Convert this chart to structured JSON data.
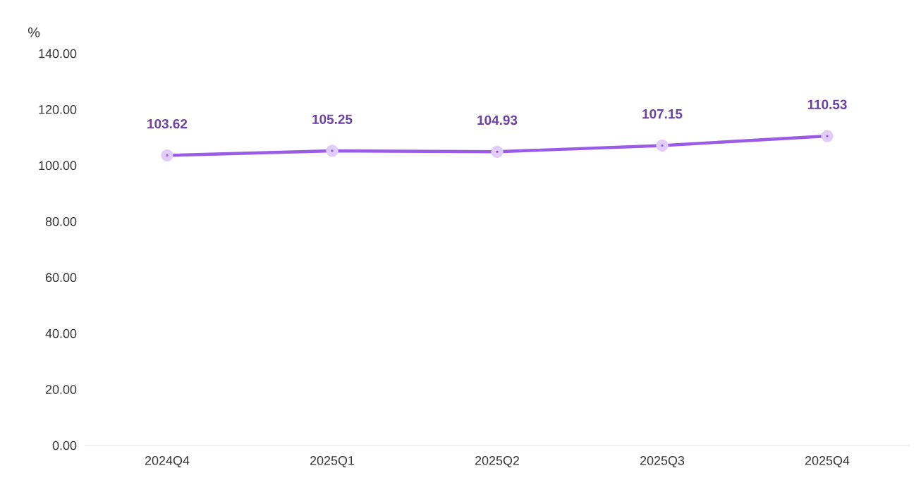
{
  "chart_data": {
    "type": "line",
    "ylabel": "%",
    "categories": [
      "2024Q4",
      "2025Q1",
      "2025Q2",
      "2025Q3",
      "2025Q4"
    ],
    "series": [
      {
        "color": "#9a5ce6",
        "values": [
          103.62,
          105.25,
          104.93,
          107.15,
          110.53
        ]
      }
    ],
    "ylim": [
      0,
      140
    ],
    "yticks": [
      {
        "value": 0,
        "label": "0.00"
      },
      {
        "value": 20,
        "label": "20.00"
      },
      {
        "value": 40,
        "label": "40.00"
      },
      {
        "value": 60,
        "label": "60.00"
      },
      {
        "value": 80,
        "label": "80.00"
      },
      {
        "value": 100,
        "label": "100.00"
      },
      {
        "value": 120,
        "label": "120.00"
      },
      {
        "value": 140,
        "label": "140.00"
      }
    ],
    "data_labels": true,
    "marker": "circle",
    "line_style": "solid"
  }
}
